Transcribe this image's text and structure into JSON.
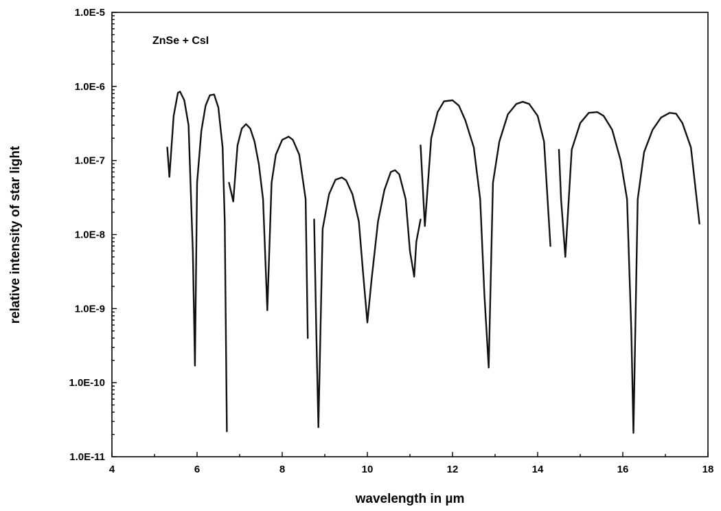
{
  "chart_data": {
    "type": "line",
    "xlabel": "wavelength in µm",
    "ylabel": "relative intensity of star light",
    "annotation": "ZnSe + CsI",
    "xlim": [
      4,
      18
    ],
    "ylim": [
      1e-11,
      1e-05
    ],
    "yscale": "log",
    "grid": false,
    "legend": "none",
    "x_ticks": [
      4,
      6,
      8,
      10,
      12,
      14,
      16,
      18
    ],
    "x_tick_labels": [
      "4",
      "6",
      "8",
      "10",
      "12",
      "14",
      "16",
      "18"
    ],
    "y_ticks": [
      1e-11,
      1e-10,
      1e-09,
      1e-08,
      1e-07,
      1e-06,
      1e-05
    ],
    "y_tick_labels": [
      "1.0E-11",
      "1.0E-10",
      "1.0E-9",
      "1.0E-8",
      "1.0E-7",
      "1.0E-6",
      "1.0E-5"
    ],
    "series": [
      {
        "segments": [
          [
            [
              5.3,
              1.5e-07
            ],
            [
              5.35,
              6e-08
            ],
            [
              5.45,
              4e-07
            ],
            [
              5.55,
              8.2e-07
            ],
            [
              5.6,
              8.5e-07
            ],
            [
              5.7,
              6.5e-07
            ],
            [
              5.8,
              3e-07
            ],
            [
              5.9,
              6e-09
            ],
            [
              5.95,
              1.7e-10
            ],
            [
              6.0,
              5e-08
            ],
            [
              6.1,
              2.5e-07
            ],
            [
              6.2,
              5.5e-07
            ],
            [
              6.3,
              7.6e-07
            ],
            [
              6.4,
              7.8e-07
            ],
            [
              6.5,
              5.2e-07
            ],
            [
              6.6,
              1.5e-07
            ],
            [
              6.65,
              1.5e-08
            ],
            [
              6.7,
              2.2e-11
            ]
          ],
          [
            [
              6.75,
              5e-08
            ],
            [
              6.85,
              2.8e-08
            ],
            [
              6.95,
              1.6e-07
            ],
            [
              7.05,
              2.7e-07
            ],
            [
              7.15,
              3.1e-07
            ],
            [
              7.25,
              2.7e-07
            ],
            [
              7.35,
              1.8e-07
            ],
            [
              7.45,
              9e-08
            ],
            [
              7.55,
              3e-08
            ],
            [
              7.65,
              9.5e-10
            ],
            [
              7.75,
              5e-08
            ],
            [
              7.85,
              1.2e-07
            ],
            [
              8.0,
              1.9e-07
            ],
            [
              8.15,
              2.1e-07
            ],
            [
              8.25,
              1.9e-07
            ],
            [
              8.4,
              1.2e-07
            ],
            [
              8.55,
              3e-08
            ],
            [
              8.6,
              4e-10
            ]
          ],
          [
            [
              8.75,
              1.6e-08
            ],
            [
              8.8,
              5e-10
            ],
            [
              8.85,
              2.5e-11
            ],
            [
              8.95,
              1.2e-08
            ],
            [
              9.1,
              3.5e-08
            ],
            [
              9.25,
              5.5e-08
            ],
            [
              9.4,
              5.9e-08
            ],
            [
              9.5,
              5.4e-08
            ],
            [
              9.65,
              3.5e-08
            ],
            [
              9.8,
              1.5e-08
            ],
            [
              9.9,
              3e-09
            ],
            [
              10.0,
              6.5e-10
            ],
            [
              10.1,
              2.5e-09
            ],
            [
              10.25,
              1.5e-08
            ],
            [
              10.4,
              4e-08
            ],
            [
              10.55,
              7e-08
            ],
            [
              10.65,
              7.4e-08
            ],
            [
              10.75,
              6.5e-08
            ],
            [
              10.9,
              3e-08
            ],
            [
              11.0,
              6e-09
            ],
            [
              11.1,
              2.7e-09
            ],
            [
              11.15,
              8e-09
            ],
            [
              11.25,
              1.6e-08
            ]
          ],
          [
            [
              11.25,
              1.6e-07
            ],
            [
              11.35,
              1.3e-08
            ],
            [
              11.5,
              2e-07
            ],
            [
              11.65,
              4.5e-07
            ],
            [
              11.8,
              6.3e-07
            ],
            [
              12.0,
              6.5e-07
            ],
            [
              12.15,
              5.5e-07
            ],
            [
              12.3,
              3.5e-07
            ],
            [
              12.5,
              1.5e-07
            ],
            [
              12.65,
              3e-08
            ],
            [
              12.75,
              1.5e-09
            ],
            [
              12.85,
              1.6e-10
            ],
            [
              12.95,
              5e-08
            ],
            [
              13.1,
              1.8e-07
            ],
            [
              13.3,
              4.2e-07
            ],
            [
              13.5,
              5.8e-07
            ],
            [
              13.65,
              6.2e-07
            ],
            [
              13.8,
              5.8e-07
            ],
            [
              14.0,
              4e-07
            ],
            [
              14.15,
              1.8e-07
            ],
            [
              14.3,
              7e-09
            ]
          ],
          [
            [
              14.5,
              1.4e-07
            ],
            [
              14.55,
              3e-08
            ],
            [
              14.65,
              5e-09
            ],
            [
              14.8,
              1.4e-07
            ],
            [
              15.0,
              3.2e-07
            ],
            [
              15.2,
              4.4e-07
            ],
            [
              15.4,
              4.5e-07
            ],
            [
              15.55,
              4e-07
            ],
            [
              15.75,
              2.6e-07
            ],
            [
              15.95,
              1e-07
            ],
            [
              16.1,
              3e-08
            ],
            [
              16.2,
              5e-10
            ],
            [
              16.25,
              2.1e-11
            ],
            [
              16.35,
              3e-08
            ],
            [
              16.5,
              1.3e-07
            ],
            [
              16.7,
              2.6e-07
            ],
            [
              16.9,
              3.8e-07
            ],
            [
              17.1,
              4.4e-07
            ],
            [
              17.25,
              4.3e-07
            ],
            [
              17.4,
              3.2e-07
            ],
            [
              17.6,
              1.5e-07
            ],
            [
              17.8,
              1.4e-08
            ]
          ]
        ]
      }
    ]
  }
}
